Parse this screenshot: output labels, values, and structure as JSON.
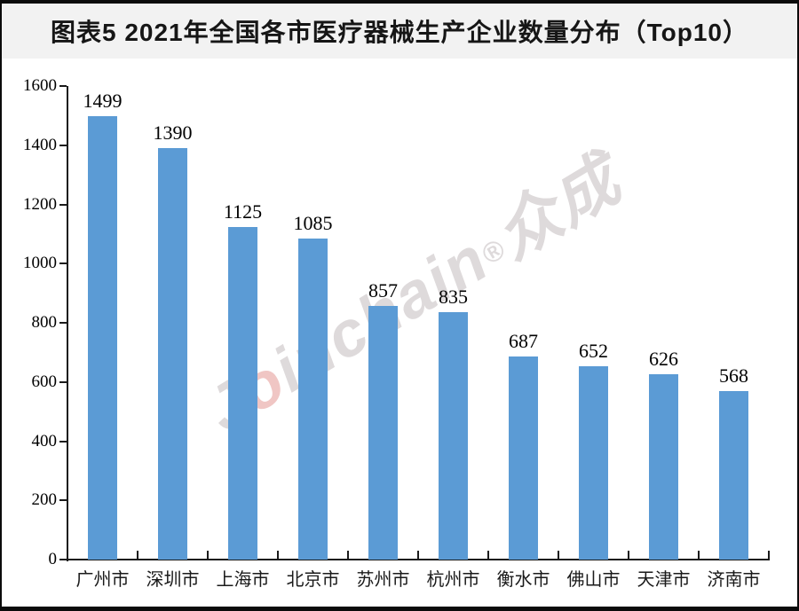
{
  "header": {
    "title": "图表5 2021年全国各市医疗器械生产企业数量分布（Top10）"
  },
  "chart_data": {
    "type": "bar",
    "title": "图表5 2021年全国各市医疗器械生产企业数量分布（Top10）",
    "categories": [
      "广州市",
      "深圳市",
      "上海市",
      "北京市",
      "苏州市",
      "杭州市",
      "衡水市",
      "佛山市",
      "天津市",
      "济南市"
    ],
    "values": [
      1499,
      1390,
      1125,
      1085,
      857,
      835,
      687,
      652,
      626,
      568
    ],
    "xlabel": "",
    "ylabel": "",
    "ylim": [
      0,
      1600
    ],
    "ytick_step": 200,
    "grid": false,
    "legend": null,
    "bar_color": "#5b9bd5",
    "value_labels_shown": true
  },
  "watermark": {
    "part1": "J",
    "part_red": "o",
    "part2": "inchain",
    "reg": "®",
    "part3": "众成",
    "color_gray": "#dedadb",
    "color_red": "#f0c6c4"
  }
}
